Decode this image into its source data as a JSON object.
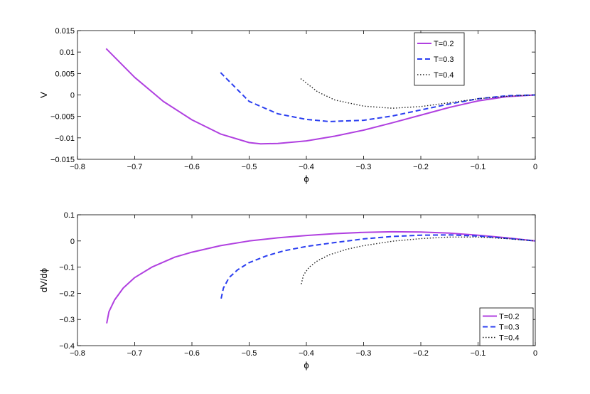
{
  "chart_data": [
    {
      "type": "line",
      "xlabel": "ϕ",
      "ylabel": "V",
      "xlim": [
        -0.8,
        0
      ],
      "ylim": [
        -0.015,
        0.015
      ],
      "xticks": [
        "−0.8",
        "−0.7",
        "−0.6",
        "−0.5",
        "−0.4",
        "−0.3",
        "−0.2",
        "−0.1",
        "0"
      ],
      "yticks": [
        "0.015",
        "0.01",
        "0.005",
        "0",
        "−0.005",
        "−0.01",
        "−0.015"
      ],
      "legend_position": "top-right",
      "grid": false,
      "series": [
        {
          "name": "T=0.2",
          "color": "#b040e0",
          "dash": "solid",
          "x": [
            -0.75,
            -0.7,
            -0.65,
            -0.6,
            -0.55,
            -0.5,
            -0.48,
            -0.45,
            -0.4,
            -0.35,
            -0.3,
            -0.25,
            -0.2,
            -0.15,
            -0.1,
            -0.05,
            0
          ],
          "y": [
            0.0108,
            0.0041,
            -0.0015,
            -0.0058,
            -0.0091,
            -0.0111,
            -0.0114,
            -0.0113,
            -0.0107,
            -0.0096,
            -0.0082,
            -0.0065,
            -0.0047,
            -0.0029,
            -0.0014,
            -0.0004,
            0
          ]
        },
        {
          "name": "T=0.3",
          "color": "#2a3ef0",
          "dash": "dashed",
          "x": [
            -0.55,
            -0.5,
            -0.45,
            -0.4,
            -0.36,
            -0.3,
            -0.25,
            -0.2,
            -0.15,
            -0.1,
            -0.05,
            0
          ],
          "y": [
            0.0052,
            -0.0015,
            -0.0044,
            -0.0057,
            -0.0062,
            -0.0059,
            -0.0049,
            -0.0035,
            -0.0021,
            -0.0009,
            -0.0002,
            0
          ]
        },
        {
          "name": "T=0.4",
          "color": "#222222",
          "dash": "dotted",
          "x": [
            -0.41,
            -0.38,
            -0.35,
            -0.3,
            -0.25,
            -0.2,
            -0.15,
            -0.1,
            -0.05,
            0
          ],
          "y": [
            0.0038,
            0.0007,
            -0.0012,
            -0.0026,
            -0.0031,
            -0.0027,
            -0.0018,
            -0.0009,
            -0.0003,
            0
          ]
        }
      ]
    },
    {
      "type": "line",
      "xlabel": "ϕ",
      "ylabel": "dV/dϕ",
      "xlim": [
        -0.8,
        0
      ],
      "ylim": [
        -0.4,
        0.1
      ],
      "xticks": [
        "−0.8",
        "−0.7",
        "−0.6",
        "−0.5",
        "−0.4",
        "−0.3",
        "−0.2",
        "−0.1",
        "0"
      ],
      "yticks": [
        "0.1",
        "0",
        "−0.1",
        "−0.2",
        "−0.3",
        "−0.4"
      ],
      "legend_position": "bottom-right",
      "grid": false,
      "series": [
        {
          "name": "T=0.2",
          "color": "#b040e0",
          "dash": "solid",
          "x": [
            -0.749,
            -0.745,
            -0.735,
            -0.72,
            -0.7,
            -0.67,
            -0.63,
            -0.6,
            -0.55,
            -0.5,
            -0.45,
            -0.4,
            -0.35,
            -0.3,
            -0.25,
            -0.2,
            -0.15,
            -0.1,
            -0.05,
            0
          ],
          "y": [
            -0.315,
            -0.27,
            -0.225,
            -0.18,
            -0.14,
            -0.1,
            -0.062,
            -0.043,
            -0.018,
            0.0,
            0.012,
            0.021,
            0.028,
            0.033,
            0.035,
            0.034,
            0.03,
            0.022,
            0.012,
            0
          ]
        },
        {
          "name": "T=0.3",
          "color": "#2a3ef0",
          "dash": "dashed",
          "x": [
            -0.549,
            -0.545,
            -0.535,
            -0.52,
            -0.5,
            -0.47,
            -0.44,
            -0.4,
            -0.35,
            -0.3,
            -0.25,
            -0.2,
            -0.15,
            -0.1,
            -0.05,
            0
          ],
          "y": [
            -0.22,
            -0.18,
            -0.14,
            -0.11,
            -0.083,
            -0.057,
            -0.038,
            -0.021,
            -0.006,
            0.008,
            0.017,
            0.022,
            0.023,
            0.019,
            0.01,
            0
          ]
        },
        {
          "name": "T=0.4",
          "color": "#222222",
          "dash": "dotted",
          "x": [
            -0.409,
            -0.405,
            -0.395,
            -0.38,
            -0.36,
            -0.33,
            -0.3,
            -0.25,
            -0.2,
            -0.15,
            -0.1,
            -0.05,
            0
          ],
          "y": [
            -0.165,
            -0.13,
            -0.1,
            -0.075,
            -0.053,
            -0.032,
            -0.018,
            -0.001,
            0.009,
            0.015,
            0.015,
            0.009,
            0
          ]
        }
      ]
    }
  ]
}
